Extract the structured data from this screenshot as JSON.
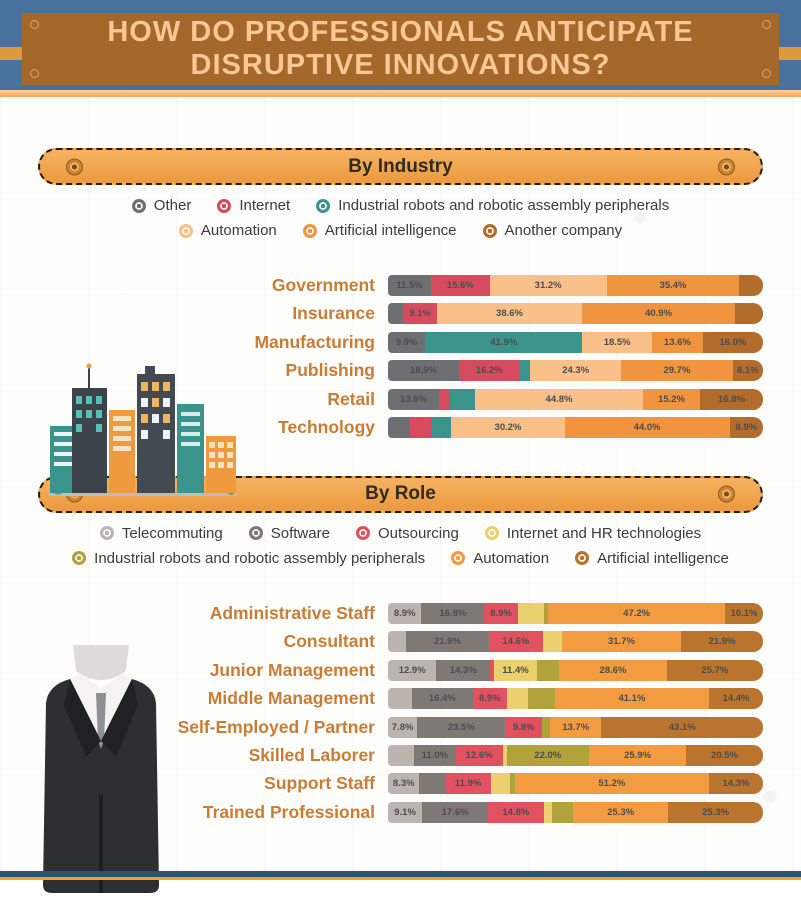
{
  "header": {
    "title_line1": "HOW DO PROFESSIONALS ANTICIPATE",
    "title_line2": "DISRUPTIVE INNOVATIONS?"
  },
  "chart_data": [
    {
      "type": "bar",
      "stacked": true,
      "orientation": "horizontal",
      "title": "By Industry",
      "legend_position": "top",
      "value_unit": "%",
      "legend": [
        [
          {
            "name": "Other",
            "color": "#6e6f72"
          },
          {
            "name": "Internet",
            "color": "#d64c5e"
          },
          {
            "name": "Industrial robots and robotic assembly peripherals",
            "color": "#3a948c"
          }
        ],
        [
          {
            "name": "Automation",
            "color": "#f9c08a"
          },
          {
            "name": "Artificial intelligence",
            "color": "#f09440"
          },
          {
            "name": "Another company",
            "color": "#b26d2c"
          }
        ]
      ],
      "rows": [
        {
          "label": "Government",
          "segments": [
            {
              "series": "Other",
              "color": "#6e6f72",
              "value": 11.5,
              "text": "11.5%"
            },
            {
              "series": "Internet",
              "color": "#d64c5e",
              "value": 15.6,
              "text": "15.6%"
            },
            {
              "series": "Automation",
              "color": "#f9c08a",
              "value": 31.2,
              "text": "31.2%"
            },
            {
              "series": "Artificial intelligence",
              "color": "#f09440",
              "value": 35.4,
              "text": "35.4%"
            },
            {
              "series": "Another company",
              "color": "#b26d2c",
              "value": 6.3,
              "text": ""
            }
          ]
        },
        {
          "label": "Insurance",
          "segments": [
            {
              "series": "Other",
              "color": "#6e6f72",
              "value": 4.0,
              "text": ""
            },
            {
              "series": "Internet",
              "color": "#d64c5e",
              "value": 9.1,
              "text": "9.1%"
            },
            {
              "series": "Automation",
              "color": "#f9c08a",
              "value": 38.6,
              "text": "38.6%"
            },
            {
              "series": "Artificial intelligence",
              "color": "#f09440",
              "value": 40.9,
              "text": "40.9%"
            },
            {
              "series": "Another company",
              "color": "#b26d2c",
              "value": 7.4,
              "text": ""
            }
          ]
        },
        {
          "label": "Manufacturing",
          "segments": [
            {
              "series": "Other",
              "color": "#6e6f72",
              "value": 9.9,
              "text": "9.9%"
            },
            {
              "series": "Industrial robots and robotic assembly peripherals",
              "color": "#3a948c",
              "value": 41.9,
              "text": "41.9%"
            },
            {
              "series": "Automation",
              "color": "#f9c08a",
              "value": 18.5,
              "text": "18.5%"
            },
            {
              "series": "Artificial intelligence",
              "color": "#f09440",
              "value": 13.6,
              "text": "13.6%"
            },
            {
              "series": "Another company",
              "color": "#b26d2c",
              "value": 16.0,
              "text": "16.0%"
            }
          ]
        },
        {
          "label": "Publishing",
          "segments": [
            {
              "series": "Other",
              "color": "#6e6f72",
              "value": 18.9,
              "text": "18.9%"
            },
            {
              "series": "Internet",
              "color": "#d64c5e",
              "value": 16.2,
              "text": "16.2%"
            },
            {
              "series": "Industrial robots and robotic assembly peripherals",
              "color": "#3a948c",
              "value": 2.8,
              "text": ""
            },
            {
              "series": "Automation",
              "color": "#f9c08a",
              "value": 24.3,
              "text": "24.3%"
            },
            {
              "series": "Artificial intelligence",
              "color": "#f09440",
              "value": 29.7,
              "text": "29.7%"
            },
            {
              "series": "Another company",
              "color": "#b26d2c",
              "value": 8.1,
              "text": "8.1%"
            }
          ]
        },
        {
          "label": "Retail",
          "segments": [
            {
              "series": "Other",
              "color": "#6e6f72",
              "value": 13.6,
              "text": "13.6%"
            },
            {
              "series": "Internet",
              "color": "#d64c5e",
              "value": 3.0,
              "text": ""
            },
            {
              "series": "Industrial robots and robotic assembly peripherals",
              "color": "#3a948c",
              "value": 6.6,
              "text": ""
            },
            {
              "series": "Automation",
              "color": "#f9c08a",
              "value": 44.8,
              "text": "44.8%"
            },
            {
              "series": "Artificial intelligence",
              "color": "#f09440",
              "value": 15.2,
              "text": "15.2%"
            },
            {
              "series": "Another company",
              "color": "#b26d2c",
              "value": 16.8,
              "text": "16.8%"
            }
          ]
        },
        {
          "label": "Technology",
          "segments": [
            {
              "series": "Other",
              "color": "#6e6f72",
              "value": 5.8,
              "text": ""
            },
            {
              "series": "Internet",
              "color": "#d64c5e",
              "value": 5.6,
              "text": ""
            },
            {
              "series": "Industrial robots and robotic assembly peripherals",
              "color": "#3a948c",
              "value": 5.5,
              "text": ""
            },
            {
              "series": "Automation",
              "color": "#f9c08a",
              "value": 30.2,
              "text": "30.2%"
            },
            {
              "series": "Artificial intelligence",
              "color": "#f09440",
              "value": 44.0,
              "text": "44.0%"
            },
            {
              "series": "Another company",
              "color": "#b26d2c",
              "value": 8.9,
              "text": "8.9%"
            }
          ]
        }
      ]
    },
    {
      "type": "bar",
      "stacked": true,
      "orientation": "horizontal",
      "title": "By Role",
      "legend_position": "top",
      "value_unit": "%",
      "legend": [
        [
          {
            "name": "Telecommuting",
            "color": "#bcb5af"
          },
          {
            "name": "Software",
            "color": "#7e7974"
          },
          {
            "name": "Outsourcing",
            "color": "#e15260"
          },
          {
            "name": "Internet and HR technologies",
            "color": "#ebd06f"
          }
        ],
        [
          {
            "name": "Industrial robots and robotic assembly peripherals",
            "color": "#b1a23b"
          },
          {
            "name": "Automation",
            "color": "#f39b40"
          },
          {
            "name": "Artificial intelligence",
            "color": "#ba742e"
          }
        ]
      ],
      "rows": [
        {
          "label": "Administrative Staff",
          "segments": [
            {
              "series": "Telecommuting",
              "color": "#bcb5af",
              "value": 8.9,
              "text": "8.9%"
            },
            {
              "series": "Software",
              "color": "#7e7974",
              "value": 16.8,
              "text": "16.8%"
            },
            {
              "series": "Outsourcing",
              "color": "#e15260",
              "value": 8.9,
              "text": "8.9%"
            },
            {
              "series": "Internet and HR technologies",
              "color": "#ebd06f",
              "value": 6.9,
              "text": ""
            },
            {
              "series": "Industrial robots and robotic assembly peripherals",
              "color": "#b1a23b",
              "value": 1.2,
              "text": ""
            },
            {
              "series": "Automation",
              "color": "#f39b40",
              "value": 47.2,
              "text": "47.2%"
            },
            {
              "series": "Artificial intelligence",
              "color": "#ba742e",
              "value": 10.1,
              "text": "10.1%"
            }
          ]
        },
        {
          "label": "Consultant",
          "segments": [
            {
              "series": "Telecommuting",
              "color": "#bcb5af",
              "value": 4.9,
              "text": ""
            },
            {
              "series": "Software",
              "color": "#7e7974",
              "value": 21.9,
              "text": "21.9%"
            },
            {
              "series": "Outsourcing",
              "color": "#e15260",
              "value": 14.6,
              "text": "14.6%"
            },
            {
              "series": "Internet and HR technologies",
              "color": "#ebd06f",
              "value": 5.0,
              "text": ""
            },
            {
              "series": "Automation",
              "color": "#f39b40",
              "value": 31.7,
              "text": "31.7%"
            },
            {
              "series": "Artificial intelligence",
              "color": "#ba742e",
              "value": 21.9,
              "text": "21.9%"
            }
          ]
        },
        {
          "label": "Junior Management",
          "segments": [
            {
              "series": "Telecommuting",
              "color": "#bcb5af",
              "value": 12.9,
              "text": "12.9%"
            },
            {
              "series": "Software",
              "color": "#7e7974",
              "value": 14.3,
              "text": "14.3%"
            },
            {
              "series": "Outsourcing",
              "color": "#e15260",
              "value": 1.1,
              "text": ""
            },
            {
              "series": "Internet and HR technologies",
              "color": "#ebd06f",
              "value": 11.4,
              "text": "11.4%"
            },
            {
              "series": "Industrial robots and robotic assembly peripherals",
              "color": "#b1a23b",
              "value": 6.0,
              "text": ""
            },
            {
              "series": "Automation",
              "color": "#f39b40",
              "value": 28.6,
              "text": "28.6%"
            },
            {
              "series": "Artificial intelligence",
              "color": "#ba742e",
              "value": 25.7,
              "text": "25.7%"
            }
          ]
        },
        {
          "label": "Middle Management",
          "segments": [
            {
              "series": "Telecommuting",
              "color": "#bcb5af",
              "value": 6.3,
              "text": ""
            },
            {
              "series": "Software",
              "color": "#7e7974",
              "value": 16.4,
              "text": "16.4%"
            },
            {
              "series": "Outsourcing",
              "color": "#e15260",
              "value": 8.9,
              "text": "8.9%"
            },
            {
              "series": "Internet and HR technologies",
              "color": "#ebd06f",
              "value": 5.7,
              "text": ""
            },
            {
              "series": "Industrial robots and robotic assembly peripherals",
              "color": "#b1a23b",
              "value": 7.2,
              "text": ""
            },
            {
              "series": "Automation",
              "color": "#f39b40",
              "value": 41.1,
              "text": "41.1%"
            },
            {
              "series": "Artificial intelligence",
              "color": "#ba742e",
              "value": 14.4,
              "text": "14.4%"
            }
          ]
        },
        {
          "label": "Self-Employed / Partner",
          "segments": [
            {
              "series": "Telecommuting",
              "color": "#bcb5af",
              "value": 7.8,
              "text": "7.8%"
            },
            {
              "series": "Software",
              "color": "#7e7974",
              "value": 23.5,
              "text": "23.5%"
            },
            {
              "series": "Outsourcing",
              "color": "#e15260",
              "value": 9.8,
              "text": "9.8%"
            },
            {
              "series": "Industrial robots and robotic assembly peripherals",
              "color": "#b1a23b",
              "value": 2.1,
              "text": ""
            },
            {
              "series": "Automation",
              "color": "#f39b40",
              "value": 13.7,
              "text": "13.7%"
            },
            {
              "series": "Artificial intelligence",
              "color": "#ba742e",
              "value": 43.1,
              "text": "43.1%"
            }
          ]
        },
        {
          "label": "Skilled Laborer",
          "segments": [
            {
              "series": "Telecommuting",
              "color": "#bcb5af",
              "value": 7.0,
              "text": ""
            },
            {
              "series": "Software",
              "color": "#7e7974",
              "value": 11.0,
              "text": "11.0%"
            },
            {
              "series": "Outsourcing",
              "color": "#e15260",
              "value": 12.6,
              "text": "12.6%"
            },
            {
              "series": "Internet and HR technologies",
              "color": "#ebd06f",
              "value": 1.0,
              "text": ""
            },
            {
              "series": "Industrial robots and robotic assembly peripherals",
              "color": "#b1a23b",
              "value": 22.0,
              "text": "22.0%"
            },
            {
              "series": "Automation",
              "color": "#f39b40",
              "value": 25.9,
              "text": "25.9%"
            },
            {
              "series": "Artificial intelligence",
              "color": "#ba742e",
              "value": 20.5,
              "text": "20.5%"
            }
          ]
        },
        {
          "label": "Support Staff",
          "segments": [
            {
              "series": "Telecommuting",
              "color": "#bcb5af",
              "value": 8.3,
              "text": "8.3%"
            },
            {
              "series": "Software",
              "color": "#7e7974",
              "value": 6.9,
              "text": ""
            },
            {
              "series": "Outsourcing",
              "color": "#e15260",
              "value": 11.9,
              "text": "11.9%"
            },
            {
              "series": "Internet and HR technologies",
              "color": "#ebd06f",
              "value": 5.0,
              "text": ""
            },
            {
              "series": "Industrial robots and robotic assembly peripherals",
              "color": "#b1a23b",
              "value": 1.4,
              "text": ""
            },
            {
              "series": "Automation",
              "color": "#f39b40",
              "value": 51.2,
              "text": "51.2%"
            },
            {
              "series": "Artificial intelligence",
              "color": "#ba742e",
              "value": 14.3,
              "text": "14.3%"
            }
          ]
        },
        {
          "label": "Trained Professional",
          "segments": [
            {
              "series": "Telecommuting",
              "color": "#bcb5af",
              "value": 9.1,
              "text": "9.1%"
            },
            {
              "series": "Software",
              "color": "#7e7974",
              "value": 17.6,
              "text": "17.6%"
            },
            {
              "series": "Outsourcing",
              "color": "#e15260",
              "value": 14.8,
              "text": "14.8%"
            },
            {
              "series": "Internet and HR technologies",
              "color": "#ebd06f",
              "value": 2.3,
              "text": ""
            },
            {
              "series": "Industrial robots and robotic assembly peripherals",
              "color": "#b1a23b",
              "value": 5.6,
              "text": ""
            },
            {
              "series": "Automation",
              "color": "#f39b40",
              "value": 25.3,
              "text": "25.3%"
            },
            {
              "series": "Artificial intelligence",
              "color": "#ba742e",
              "value": 25.3,
              "text": "25.3%"
            }
          ]
        }
      ]
    }
  ]
}
